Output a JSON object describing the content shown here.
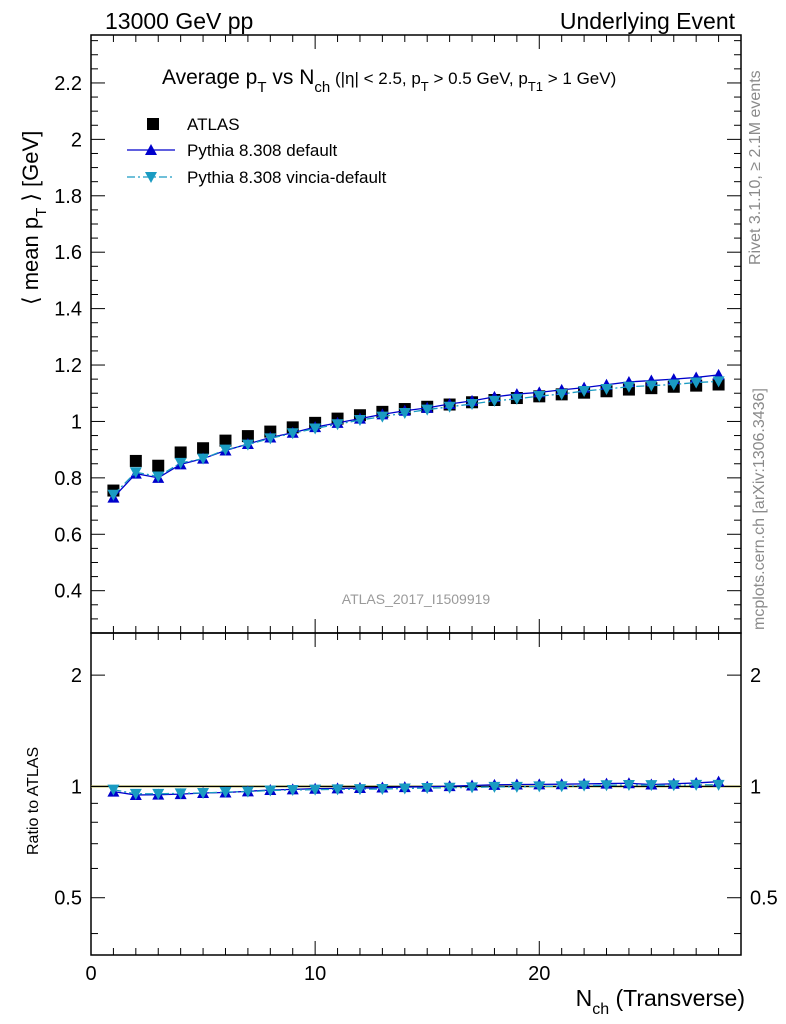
{
  "header": {
    "left": "13000 GeV pp",
    "right": "Underlying Event"
  },
  "side_labels": {
    "rivet": "Rivet 3.1.10, ≥ 2.1M events",
    "mcplots": "mcplots.cern.ch [arXiv:1306.3436]"
  },
  "chart_data": [
    {
      "type": "scatter",
      "title_parts": {
        "t1": "Average p",
        "t1_sub": "T",
        "t2": " vs N",
        "t2_sub": "ch",
        "s1": " (|η| < 2.5, p",
        "s1_sub": "T",
        "s2": " > 0.5 GeV, p",
        "s2_sub": "T1",
        "s3": " > 1 GeV)"
      },
      "ylabel_parts": {
        "a": "⟨ mean p",
        "sub": "T",
        "b": " ⟩ [GeV]"
      },
      "watermark": "ATLAS_2017_I1509919",
      "xlim": [
        0,
        29
      ],
      "ylim": [
        0.25,
        2.37
      ],
      "yticks": [
        "0.4",
        "0.6",
        "0.8",
        "1",
        "1.2",
        "1.4",
        "1.6",
        "1.8",
        "2",
        "2.2"
      ],
      "legend_position": "top-left",
      "x": [
        1,
        2,
        3,
        4,
        5,
        6,
        7,
        8,
        9,
        10,
        11,
        12,
        13,
        14,
        15,
        16,
        17,
        18,
        19,
        20,
        21,
        22,
        23,
        24,
        25,
        26,
        27,
        28
      ],
      "series": [
        {
          "name": "ATLAS",
          "marker": "square",
          "color": "#000000",
          "values": [
            0.755,
            0.86,
            0.843,
            0.89,
            0.905,
            0.932,
            0.948,
            0.964,
            0.979,
            0.995,
            1.01,
            1.022,
            1.034,
            1.044,
            1.052,
            1.06,
            1.068,
            1.076,
            1.083,
            1.089,
            1.096,
            1.102,
            1.107,
            1.113,
            1.118,
            1.123,
            1.127,
            1.131
          ]
        },
        {
          "name": "Pythia 8.308 default",
          "marker": "triangle-up",
          "color": "#0000cc",
          "line": "solid",
          "values": [
            0.73,
            0.815,
            0.8,
            0.848,
            0.868,
            0.897,
            0.92,
            0.943,
            0.96,
            0.98,
            0.995,
            1.01,
            1.025,
            1.038,
            1.048,
            1.062,
            1.073,
            1.087,
            1.097,
            1.103,
            1.112,
            1.12,
            1.13,
            1.14,
            1.145,
            1.15,
            1.156,
            1.165
          ]
        },
        {
          "name": "Pythia 8.308 vincia-default",
          "marker": "triangle-down",
          "color": "#1a9bc2",
          "line": "dashdot",
          "values": [
            0.74,
            0.82,
            0.805,
            0.853,
            0.868,
            0.9,
            0.918,
            0.94,
            0.958,
            0.975,
            0.99,
            1.005,
            1.017,
            1.03,
            1.042,
            1.052,
            1.062,
            1.073,
            1.08,
            1.09,
            1.097,
            1.108,
            1.115,
            1.123,
            1.127,
            1.131,
            1.138,
            1.142
          ]
        }
      ]
    },
    {
      "type": "scatter",
      "ylabel": "Ratio to ATLAS",
      "xlabel_parts": {
        "a": "N",
        "sub": "ch",
        "b": " (Transverse)"
      },
      "xlim": [
        0,
        29
      ],
      "ylim": [
        0.35,
        2.6
      ],
      "yscale": "log",
      "xticks": [
        "0",
        "10",
        "20"
      ],
      "yticks": [
        "0.5",
        "1",
        "2"
      ],
      "reference_band_color": "#ffff66",
      "reference_line_color": "#000000",
      "x": [
        1,
        2,
        3,
        4,
        5,
        6,
        7,
        8,
        9,
        10,
        11,
        12,
        13,
        14,
        15,
        16,
        17,
        18,
        19,
        20,
        21,
        22,
        23,
        24,
        25,
        26,
        27,
        28
      ],
      "series": [
        {
          "name": "Pythia 8.308 default",
          "marker": "triangle-up",
          "color": "#0000cc",
          "line": "solid",
          "values": [
            0.968,
            0.948,
            0.95,
            0.953,
            0.96,
            0.963,
            0.97,
            0.978,
            0.982,
            0.986,
            0.988,
            0.99,
            0.993,
            0.996,
            0.998,
            1.002,
            1.006,
            1.01,
            1.012,
            1.013,
            1.014,
            1.016,
            1.018,
            1.02,
            1.012,
            1.017,
            1.022,
            1.03
          ]
        },
        {
          "name": "Pythia 8.308 vincia-default",
          "marker": "triangle-down",
          "color": "#1a9bc2",
          "line": "dashdot",
          "values": [
            0.98,
            0.955,
            0.955,
            0.958,
            0.96,
            0.966,
            0.968,
            0.975,
            0.978,
            0.98,
            0.982,
            0.983,
            0.984,
            0.987,
            0.99,
            0.992,
            0.994,
            0.997,
            0.997,
            1.0,
            1.001,
            1.005,
            1.007,
            1.009,
            1.008,
            1.007,
            1.01,
            1.01
          ]
        }
      ]
    }
  ]
}
